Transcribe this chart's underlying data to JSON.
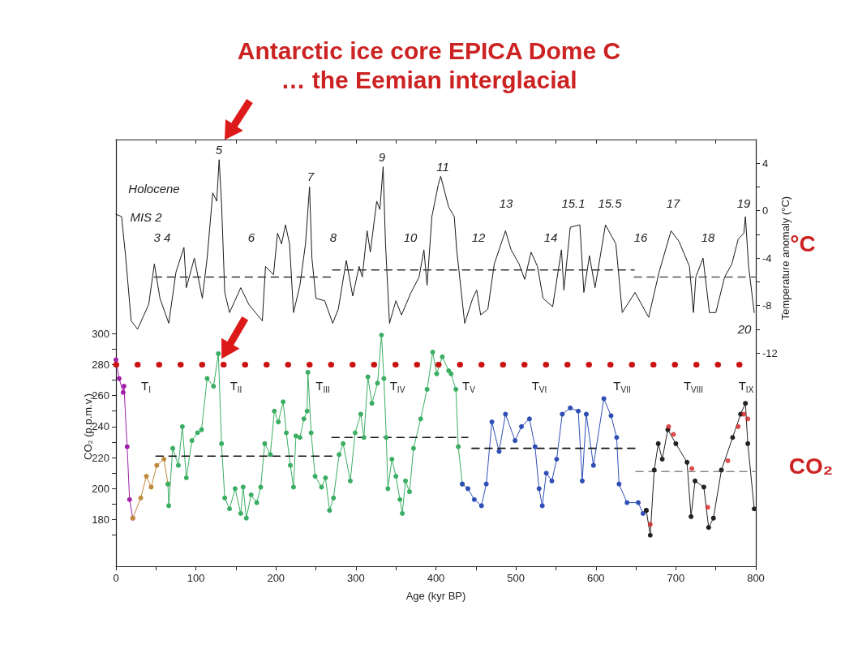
{
  "chart_data": {
    "type": "line",
    "title": "Antarctic ice core EPICA Dome C",
    "subtitle": "… the Eemian interglacial",
    "xlabel": "Age (kyr BP)",
    "ylabel": "CO₂ (p.p.m.v.)",
    "y2label": "Temperature anomaly (°C)",
    "xlim": [
      0,
      800
    ],
    "xticks": [
      0,
      {
        "value": 50,
        "label": null
      },
      100,
      {
        "value": 150,
        "label": null
      },
      200,
      {
        "value": 250,
        "label": null
      },
      300,
      {
        "value": 350,
        "label": null
      },
      400,
      {
        "value": 450,
        "label": null
      },
      500,
      {
        "value": 550,
        "label": null
      },
      600,
      {
        "value": 650,
        "label": null
      },
      700,
      {
        "value": 750,
        "label": null
      },
      800
    ],
    "ylim": [
      150,
      425
    ],
    "yticks": [
      {
        "value": 170,
        "label": null
      },
      180,
      {
        "value": 190,
        "label": null
      },
      200,
      {
        "value": 210,
        "label": null
      },
      220,
      {
        "value": 230,
        "label": null
      },
      240,
      {
        "value": 250,
        "label": null
      },
      260,
      {
        "value": 270,
        "label": null
      },
      280,
      {
        "value": 290,
        "label": null
      },
      300
    ],
    "y2lim": [
      -30,
      6
    ],
    "y2ticks": [
      -12,
      {
        "value": -10,
        "label": null
      },
      -8,
      {
        "value": -6,
        "label": null
      },
      -4,
      {
        "value": -2,
        "label": null
      },
      0,
      {
        "value": 2,
        "label": null
      },
      4
    ],
    "series": [
      {
        "axis": "y2",
        "color": "#1a1a1a",
        "marker": "none",
        "line_style": "solid",
        "x": [
          0,
          7,
          12,
          19,
          27,
          41,
          48,
          55,
          66,
          75,
          85,
          88,
          98,
          108,
          114,
          121,
          126,
          129,
          132,
          136,
          142,
          156,
          166,
          183,
          187,
          197,
          202,
          207,
          212,
          217,
          222,
          230,
          237,
          242,
          245,
          250,
          261,
          271,
          278,
          288,
          296,
          304,
          308,
          314,
          318,
          326,
          330,
          334,
          337,
          342,
          350,
          357,
          369,
          379,
          385,
          389,
          395,
          403,
          406,
          416,
          423,
          426,
          436,
          446,
          451,
          456,
          465,
          473,
          487,
          494,
          504,
          511,
          519,
          527,
          534,
          546,
          557,
          560,
          568,
          580,
          585,
          592,
          599,
          612,
          625,
          633,
          649,
          666,
          679,
          694,
          704,
          717,
          722,
          725,
          734,
          742,
          750,
          761,
          770,
          778,
          785,
          787,
          791,
          798
        ],
        "values": [
          -0.3,
          -0.5,
          -3.8,
          -9.3,
          -10,
          -7.9,
          -4.5,
          -7.4,
          -9.5,
          -5.2,
          -3.1,
          -6.5,
          -4,
          -7.4,
          -4,
          1.5,
          0.8,
          4.3,
          0.6,
          -6.9,
          -8.6,
          -6.5,
          -7.9,
          -9.3,
          -4.7,
          -5.4,
          -1.9,
          -2.8,
          -1.2,
          -2.8,
          -8.6,
          -6.3,
          -2.8,
          2,
          -4,
          -7.4,
          -7.6,
          -9.5,
          -8.3,
          -4.2,
          -7.2,
          -4.7,
          -5.6,
          -1.7,
          -3.5,
          0.8,
          0.1,
          3.7,
          -2.8,
          -9.5,
          -7.6,
          -8.8,
          -6.9,
          -5.6,
          -3.3,
          -6.3,
          -0.5,
          2.2,
          2.9,
          0.3,
          -0.5,
          -3.3,
          -9.5,
          -7.4,
          -6.7,
          -8.8,
          -8.3,
          -4.5,
          -1.7,
          -3.3,
          -4.5,
          -5.8,
          -3.5,
          -4.7,
          -7.4,
          -8.1,
          -3.3,
          -6.7,
          -1.4,
          -1.2,
          -6.9,
          -3.8,
          -6.5,
          -1.2,
          -2.8,
          -8.6,
          -6.9,
          -9,
          -5.2,
          -1.7,
          -2.6,
          -4.7,
          -8.6,
          -5.6,
          -4,
          -8.6,
          -8.6,
          -5.6,
          -4.5,
          -2.4,
          -1.9,
          -0.5,
          -4.7,
          -8.6
        ]
      },
      {
        "color": "#a020a8",
        "marker": "circle",
        "line_style": "solid",
        "x": [
          0,
          4,
          9,
          10,
          14,
          17,
          21
        ],
        "values": [
          283,
          271,
          262,
          266,
          227,
          193,
          181
        ]
      },
      {
        "color": "#c08a3c",
        "marker": "circle",
        "line_style": "solid",
        "x": [
          21,
          31,
          38,
          44,
          51,
          60,
          65
        ],
        "values": [
          181,
          194,
          208,
          201,
          215,
          219,
          203
        ]
      },
      {
        "color": "#3aae62",
        "marker": "circle",
        "line_style": "solid",
        "x": [
          65,
          66,
          71,
          78,
          83,
          88,
          95,
          102,
          107,
          114,
          122,
          128,
          132,
          136,
          142,
          149,
          156,
          159,
          163,
          169,
          176,
          181,
          186,
          193,
          198,
          203,
          209,
          213,
          218,
          222,
          225,
          230,
          235,
          239,
          240,
          244,
          249,
          257,
          262,
          267,
          272,
          279,
          284,
          293,
          299,
          306,
          310,
          315,
          320,
          327,
          332,
          335,
          338,
          340,
          345,
          350,
          355,
          358,
          362,
          367,
          372,
          381,
          389,
          396,
          401,
          408,
          416,
          419,
          425,
          428,
          433
        ],
        "values": [
          203,
          189,
          226,
          215,
          240,
          207,
          231,
          236,
          238,
          271,
          266,
          287,
          229,
          194,
          187,
          200,
          184,
          201,
          181,
          196,
          191,
          201,
          229,
          222,
          250,
          243,
          256,
          236,
          215,
          201,
          234,
          233,
          245,
          250,
          275,
          236,
          208,
          201,
          207,
          186,
          194,
          222,
          229,
          205,
          236,
          248,
          233,
          272,
          255,
          268,
          299,
          271,
          233,
          200,
          219,
          208,
          193,
          184,
          205,
          198,
          226,
          245,
          264,
          288,
          274,
          285,
          276,
          274,
          264,
          227,
          203
        ]
      },
      {
        "color": "#2f4fb5",
        "marker": "circle",
        "line_style": "solid",
        "x": [
          433,
          440,
          448,
          457,
          463,
          470,
          479,
          487,
          499,
          507,
          517,
          524,
          529,
          533,
          538,
          545,
          551,
          558,
          568,
          578,
          583,
          588,
          597,
          610,
          619,
          626,
          629,
          639,
          653,
          659,
          663
        ],
        "values": [
          203,
          200,
          193,
          189,
          203,
          243,
          224,
          248,
          231,
          240,
          245,
          227,
          200,
          189,
          210,
          205,
          219,
          248,
          252,
          250,
          205,
          248,
          215,
          258,
          247,
          233,
          203,
          191,
          191,
          184,
          186
        ]
      },
      {
        "color": "#222222",
        "marker": "circle",
        "line_style": "solid",
        "x": [
          663,
          668,
          673,
          678,
          683,
          690,
          700,
          714,
          719,
          724,
          735,
          741,
          747,
          757,
          771,
          781,
          787,
          790,
          798
        ],
        "values": [
          186,
          170,
          212,
          229,
          219,
          238,
          229,
          217,
          182,
          205,
          201,
          175,
          181,
          212,
          233,
          248,
          255,
          229,
          187
        ]
      },
      {
        "type": "scatter",
        "color": "#d62020",
        "marker": "circle",
        "x": [
          668,
          691,
          697,
          720,
          740,
          765,
          778,
          785,
          790
        ],
        "values": [
          177,
          240,
          235,
          213,
          188,
          218,
          240,
          248,
          245
        ]
      },
      {
        "axis": "y2",
        "color": "#333333",
        "marker": "none",
        "line_style": "dashed",
        "x": [
          48,
          271
        ],
        "values": [
          -5.6,
          -5.6
        ]
      },
      {
        "axis": "y2",
        "color": "#333333",
        "marker": "none",
        "line_style": "dashed",
        "x": [
          271,
          648
        ],
        "values": [
          -5,
          -5
        ]
      },
      {
        "axis": "y2",
        "color": "#555555",
        "marker": "none",
        "line_style": "dashed",
        "x": [
          648,
          800
        ],
        "values": [
          -5.6,
          -5.6
        ]
      },
      {
        "color": "#111111",
        "marker": "none",
        "line_style": "dashed",
        "x": [
          50,
          270
        ],
        "values": [
          221,
          221
        ]
      },
      {
        "color": "#111111",
        "marker": "none",
        "line_style": "dashed",
        "x": [
          270,
          440
        ],
        "values": [
          233,
          233
        ]
      },
      {
        "color": "#111111",
        "marker": "none",
        "line_style": "dashed",
        "x": [
          445,
          650
        ],
        "values": [
          226,
          226
        ]
      },
      {
        "color": "#888888",
        "marker": "none",
        "line_style": "dashed",
        "x": [
          650,
          800
        ],
        "values": [
          211,
          211
        ]
      }
    ],
    "ref_lines": [
      {
        "axis": "y",
        "value": 280,
        "color": "#cc1111",
        "line_style": "dotted"
      }
    ],
    "annotations": [
      "°C",
      "CO₂",
      "Holocene",
      "MIS 2",
      "3 4",
      "5",
      "6",
      "7",
      "8",
      "9",
      "10",
      "11",
      "12",
      "13",
      "14",
      "15.1",
      "15.5",
      "16",
      "17",
      "18",
      "19",
      "20",
      "T$_{I}$",
      "T$_{II}$",
      "T$_{III}$",
      "T$_{IV}$",
      "T$_{V}$",
      "T$_{VI}$",
      "T$_{VII}$",
      "T$_{VIII}$",
      "T$_{IX}$"
    ]
  }
}
